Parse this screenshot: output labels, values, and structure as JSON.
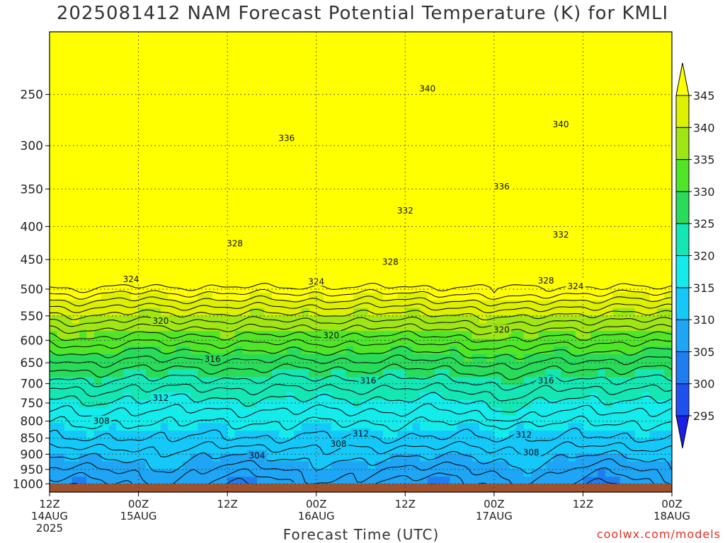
{
  "chart_data": {
    "type": "heatmap",
    "title": "2025081412 NAM Forecast Potential Temperature (K) for KMLI",
    "xlabel": "Forecast Time (UTC)",
    "ylabel": "",
    "y_scale": "log-pressure",
    "ylim": [
      1030,
      200
    ],
    "yticks": [
      250,
      300,
      350,
      400,
      450,
      500,
      550,
      600,
      650,
      700,
      750,
      800,
      850,
      900,
      950,
      1000
    ],
    "xlim_hours": [
      0,
      84
    ],
    "xticks": [
      {
        "hour": 0,
        "label": "12Z",
        "sub": "14AUG",
        "sub2": "2025"
      },
      {
        "hour": 12,
        "label": "00Z",
        "sub": "15AUG",
        "sub2": ""
      },
      {
        "hour": 24,
        "label": "12Z",
        "sub": "",
        "sub2": ""
      },
      {
        "hour": 36,
        "label": "00Z",
        "sub": "16AUG",
        "sub2": ""
      },
      {
        "hour": 48,
        "label": "12Z",
        "sub": "",
        "sub2": ""
      },
      {
        "hour": 60,
        "label": "00Z",
        "sub": "17AUG",
        "sub2": ""
      },
      {
        "hour": 72,
        "label": "12Z",
        "sub": "",
        "sub2": ""
      },
      {
        "hour": 84,
        "label": "00Z",
        "sub": "18AUG",
        "sub2": ""
      }
    ],
    "grid": true,
    "colorbar": {
      "levels": [
        295,
        300,
        305,
        310,
        315,
        320,
        325,
        330,
        335,
        340,
        345
      ],
      "colors": [
        "#1e1ee6",
        "#1e50f0",
        "#1e7df0",
        "#1ea5f5",
        "#14c8fa",
        "#14ebeb",
        "#14e6b4",
        "#28dc5a",
        "#50e628",
        "#a0e614",
        "#dcf000",
        "#ffff00"
      ],
      "extend": "both"
    },
    "ground_color": "#a0522d",
    "ground_top_hpa": 1000,
    "contour_labels": [
      {
        "text": "340",
        "hour": 51,
        "p": 245
      },
      {
        "text": "340",
        "hour": 69,
        "p": 278
      },
      {
        "text": "336",
        "hour": 32,
        "p": 292
      },
      {
        "text": "336",
        "hour": 61,
        "p": 347
      },
      {
        "text": "332",
        "hour": 48,
        "p": 378
      },
      {
        "text": "332",
        "hour": 69,
        "p": 412
      },
      {
        "text": "328",
        "hour": 25,
        "p": 425
      },
      {
        "text": "328",
        "hour": 46,
        "p": 454
      },
      {
        "text": "328",
        "hour": 67,
        "p": 485
      },
      {
        "text": "324",
        "hour": 11,
        "p": 483
      },
      {
        "text": "324",
        "hour": 36,
        "p": 487
      },
      {
        "text": "324",
        "hour": 71,
        "p": 495
      },
      {
        "text": "320",
        "hour": 15,
        "p": 560
      },
      {
        "text": "320",
        "hour": 38,
        "p": 590
      },
      {
        "text": "320",
        "hour": 61,
        "p": 578
      },
      {
        "text": "316",
        "hour": 22,
        "p": 642
      },
      {
        "text": "316",
        "hour": 43,
        "p": 693
      },
      {
        "text": "316",
        "hour": 67,
        "p": 693
      },
      {
        "text": "312",
        "hour": 15,
        "p": 737
      },
      {
        "text": "312",
        "hour": 42,
        "p": 837
      },
      {
        "text": "312",
        "hour": 64,
        "p": 840
      },
      {
        "text": "308",
        "hour": 7,
        "p": 800
      },
      {
        "text": "308",
        "hour": 39,
        "p": 868
      },
      {
        "text": "308",
        "hour": 65,
        "p": 895
      },
      {
        "text": "304",
        "hour": 28,
        "p": 905
      }
    ]
  },
  "credit": "coolwx.com/models"
}
